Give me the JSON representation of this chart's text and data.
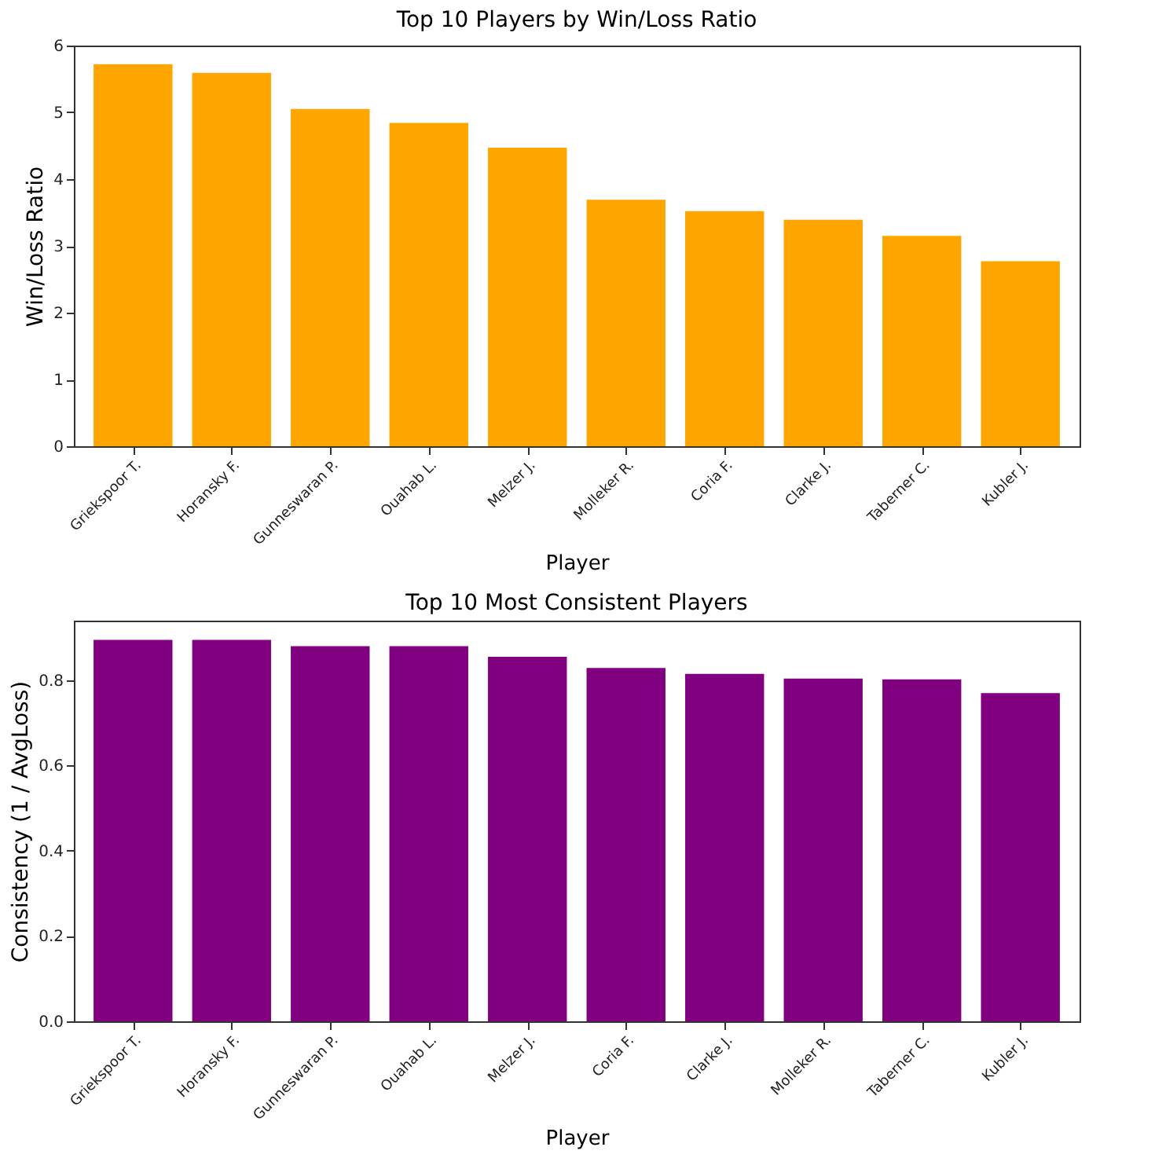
{
  "chart_data": [
    {
      "type": "bar",
      "title": "Top 10 Players by Win/Loss Ratio",
      "xlabel": "Player",
      "ylabel": "Win/Loss Ratio",
      "categories": [
        "Griekspoor T.",
        "Horansky F.",
        "Gunneswaran P.",
        "Ouahab L.",
        "Melzer J.",
        "Molleker R.",
        "Coria F.",
        "Clarke J.",
        "Taberner C.",
        "Kubler J."
      ],
      "values": [
        5.72,
        5.59,
        5.05,
        4.84,
        4.47,
        3.69,
        3.52,
        3.39,
        3.15,
        2.77
      ],
      "color": "#ffa500",
      "ylim": [
        0,
        6
      ],
      "yticks": [
        0,
        1,
        2,
        3,
        4,
        5,
        6
      ],
      "grid": false
    },
    {
      "type": "bar",
      "title": "Top 10 Most Consistent Players",
      "xlabel": "Player",
      "ylabel": "Consistency (1 / AvgLoss)",
      "categories": [
        "Griekspoor T.",
        "Horansky F.",
        "Gunneswaran P.",
        "Ouahab L.",
        "Melzer J.",
        "Coria F.",
        "Clarke J.",
        "Molleker R.",
        "Taberner C.",
        "Kubler J."
      ],
      "values": [
        0.895,
        0.895,
        0.88,
        0.88,
        0.855,
        0.829,
        0.815,
        0.804,
        0.802,
        0.77
      ],
      "color": "#800080",
      "ylim": [
        0,
        0.94
      ],
      "yticks": [
        {
          "value": 0,
          "label": "0.0"
        },
        {
          "value": 0.2,
          "label": "0.2"
        },
        {
          "value": 0.4,
          "label": "0.4"
        },
        {
          "value": 0.6,
          "label": "0.6"
        },
        {
          "value": 0.8,
          "label": "0.8"
        }
      ],
      "grid": false
    }
  ]
}
